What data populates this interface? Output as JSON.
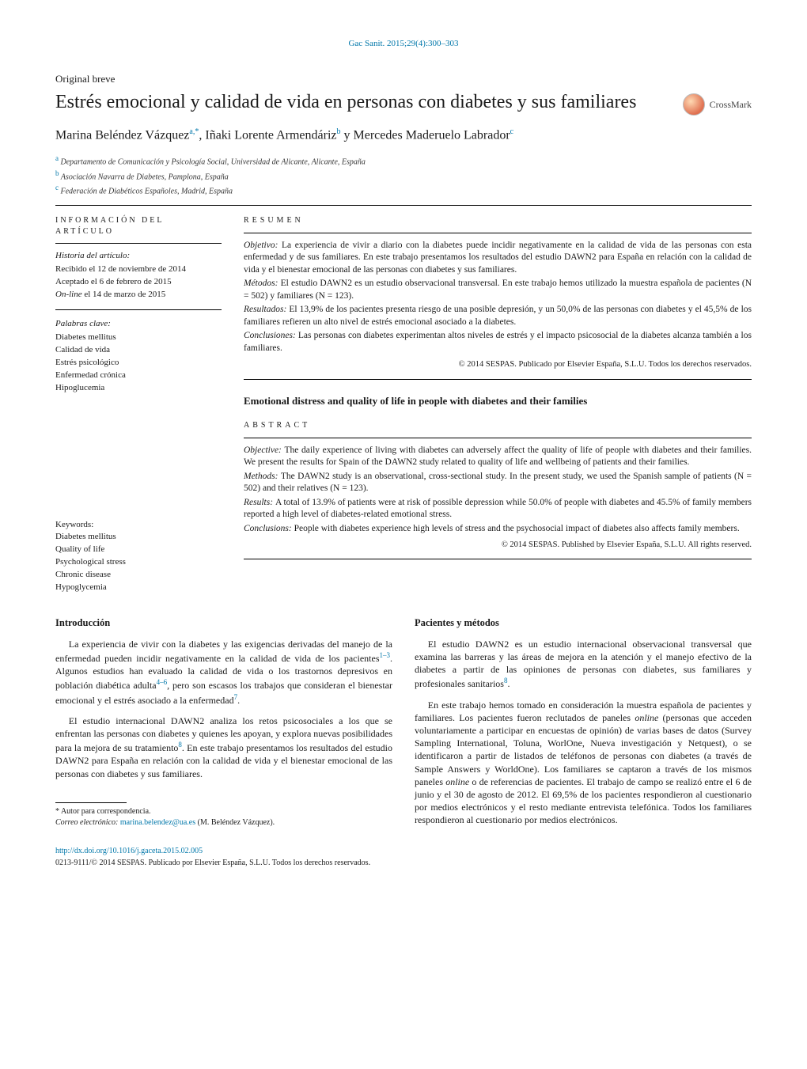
{
  "citation": "Gac Sanit. 2015;29(4):300–303",
  "article_type": "Original breve",
  "title_es": "Estrés emocional y calidad de vida en personas con diabetes y sus familiares",
  "crossmark_label": "CrossMark",
  "authors_html": "Marina Beléndez Vázquez{a,*}, Iñaki Lorente Armendáriz{b} y Mercedes Maderuelo Labrador{c}",
  "authors": [
    {
      "name": "Marina Beléndez Vázquez",
      "sup": "a,*"
    },
    {
      "sep": ", ",
      "name": "Iñaki Lorente Armendáriz",
      "sup": "b"
    },
    {
      "sep": " y ",
      "name": "Mercedes Maderuelo Labrador",
      "sup": "c"
    }
  ],
  "affiliations": [
    {
      "sup": "a",
      "text": "Departamento de Comunicación y Psicología Social, Universidad de Alicante, Alicante, España"
    },
    {
      "sup": "b",
      "text": "Asociación Navarra de Diabetes, Pamplona, España"
    },
    {
      "sup": "c",
      "text": "Federación de Diabéticos Españoles, Madrid, España"
    }
  ],
  "info": {
    "heading": "información del artículo",
    "history_title": "Historia del artículo:",
    "history_lines": [
      "Recibido el 12 de noviembre de 2014",
      "Aceptado el 6 de febrero de 2015",
      "On-line el 14 de marzo de 2015"
    ],
    "palabras_title": "Palabras clave:",
    "palabras": [
      "Diabetes mellitus",
      "Calidad de vida",
      "Estrés psicológico",
      "Enfermedad crónica",
      "Hipoglucemia"
    ],
    "keywords_title": "Keywords:",
    "keywords": [
      "Diabetes mellitus",
      "Quality of life",
      "Psychological stress",
      "Chronic disease",
      "Hypoglycemia"
    ]
  },
  "resumen": {
    "heading": "resumen",
    "items": [
      {
        "label": "Objetivo:",
        "text": "La experiencia de vivir a diario con la diabetes puede incidir negativamente en la calidad de vida de las personas con esta enfermedad y de sus familiares. En este trabajo presentamos los resultados del estudio DAWN2 para España en relación con la calidad de vida y el bienestar emocional de las personas con diabetes y sus familiares."
      },
      {
        "label": "Métodos:",
        "text": "El estudio DAWN2 es un estudio observacional transversal. En este trabajo hemos utilizado la muestra española de pacientes (N = 502) y familiares (N = 123)."
      },
      {
        "label": "Resultados:",
        "text": "El 13,9% de los pacientes presenta riesgo de una posible depresión, y un 50,0% de las personas con diabetes y el 45,5% de los familiares refieren un alto nivel de estrés emocional asociado a la diabetes."
      },
      {
        "label": "Conclusiones:",
        "text": "Las personas con diabetes experimentan altos niveles de estrés y el impacto psicosocial de la diabetes alcanza también a los familiares."
      }
    ],
    "copyright": "© 2014 SESPAS. Publicado por Elsevier España, S.L.U. Todos los derechos reservados."
  },
  "title_en": "Emotional distress and quality of life in people with diabetes and their families",
  "abstract": {
    "heading": "abstract",
    "items": [
      {
        "label": "Objective:",
        "text": "The daily experience of living with diabetes can adversely affect the quality of life of people with diabetes and their families. We present the results for Spain of the DAWN2 study related to quality of life and wellbeing of patients and their families."
      },
      {
        "label": "Methods:",
        "text": "The DAWN2 study is an observational, cross-sectional study. In the present study, we used the Spanish sample of patients (N = 502) and their relatives (N = 123)."
      },
      {
        "label": "Results:",
        "text": "A total of 13.9% of patients were at risk of possible depression while 50.0% of people with diabetes and 45.5% of family members reported a high level of diabetes-related emotional stress."
      },
      {
        "label": "Conclusions:",
        "text": "People with diabetes experience high levels of stress and the psychosocial impact of diabetes also affects family members."
      }
    ],
    "copyright": "© 2014 SESPAS. Published by Elsevier España, S.L.U. All rights reserved."
  },
  "body": {
    "intro_heading": "Introducción",
    "intro_paras": [
      "La experiencia de vivir con la diabetes y las exigencias derivadas del manejo de la enfermedad pueden incidir negativamente en la calidad de vida de los pacientes{1–3}. Algunos estudios han evaluado la calidad de vida o los trastornos depresivos en población diabética adulta{4–6}, pero son escasos los trabajos que consideran el bienestar emocional y el estrés asociado a la enfermedad{7}.",
      "El estudio internacional DAWN2 analiza los retos psicosociales a los que se enfrentan las personas con diabetes y quienes les apoyan, y explora nuevas posibilidades para la mejora de su tratamiento{8}. En este trabajo presentamos los resultados del estudio DAWN2 para España en relación con la calidad de vida y el bienestar emocional de las personas con diabetes y sus familiares."
    ],
    "methods_heading": "Pacientes y métodos",
    "methods_paras": [
      "El estudio DAWN2 es un estudio internacional observacional transversal que examina las barreras y las áreas de mejora en la atención y el manejo efectivo de la diabetes a partir de las opiniones de personas con diabetes, sus familiares y profesionales sanitarios{8}.",
      "En este trabajo hemos tomado en consideración la muestra española de pacientes y familiares. Los pacientes fueron reclutados de paneles online (personas que acceden voluntariamente a participar en encuestas de opinión) de varias bases de datos (Survey Sampling International, Toluna, WorlOne, Nueva investigación y Netquest), o se identificaron a partir de listados de teléfonos de personas con diabetes (a través de Sample Answers y WorldOne). Los familiares se captaron a través de los mismos paneles online o de referencias de pacientes. El trabajo de campo se realizó entre el 6 de junio y el 30 de agosto de 2012. El 69,5% de los pacientes respondieron al cuestionario por medios electrónicos y el resto mediante entrevista telefónica. Todos los familiares respondieron al cuestionario por medios electrónicos."
    ]
  },
  "footnote": {
    "corr": "* Autor para correspondencia.",
    "email_label": "Correo electrónico:",
    "email": "marina.belendez@ua.es",
    "email_author": "(M. Beléndez Vázquez)."
  },
  "doi": "http://dx.doi.org/10.1016/j.gaceta.2015.02.005",
  "issn_line": "0213-9111/© 2014 SESPAS. Publicado por Elsevier España, S.L.U. Todos los derechos reservados.",
  "colors": {
    "link": "#0077aa",
    "text": "#1a1a1a"
  }
}
